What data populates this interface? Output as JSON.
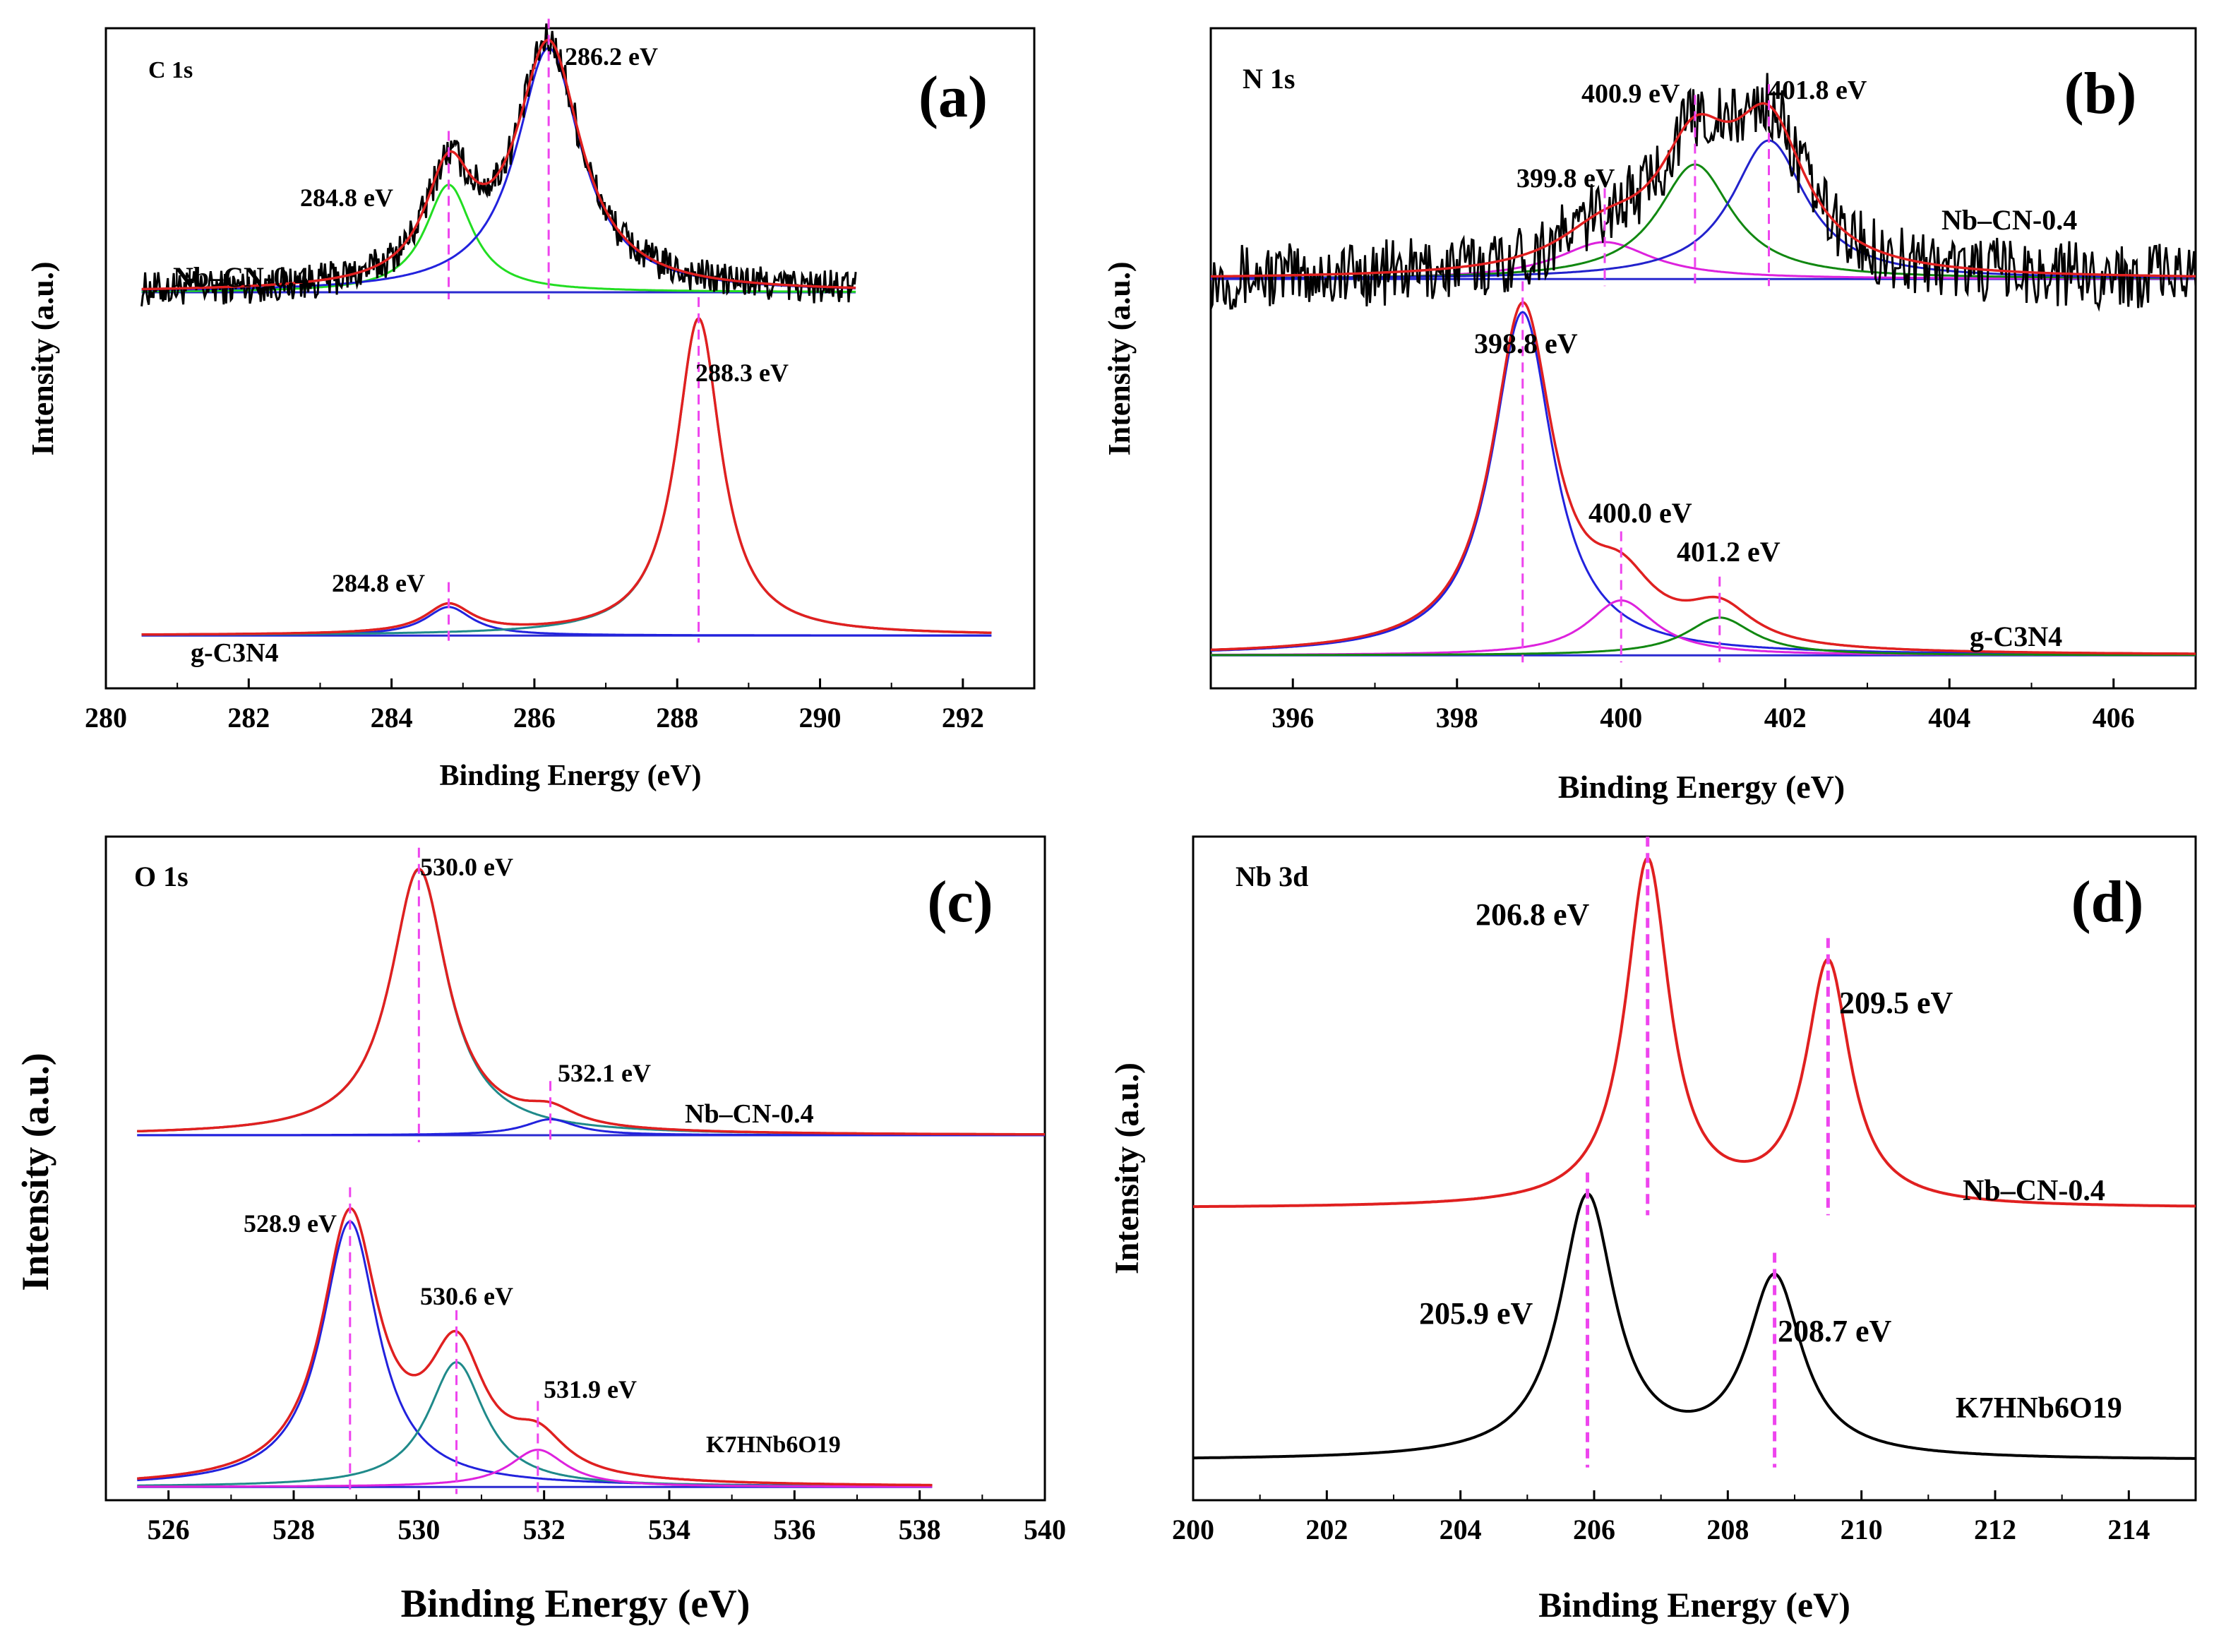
{
  "figure": {
    "xlabel": "Binding Energy (eV)",
    "ylabel": "Intensity (a.u.)"
  },
  "chart_data": [
    {
      "type": "line",
      "panel": "(a)",
      "element": "C 1s",
      "xlabel": "Binding Energy (eV)",
      "ylabel": "Intensity (a.u.)",
      "xlim": [
        280,
        293
      ],
      "xticks": [
        280,
        282,
        284,
        286,
        288,
        290,
        292
      ],
      "samples": [
        {
          "label": "Nb–CN-0.4",
          "xrange": [
            280.5,
            290.5
          ],
          "baseline": 0.6,
          "height": 0.37,
          "noise": 0.012,
          "peaks": [
            {
              "center": 284.8,
              "label": "284.8 eV",
              "amp": 0.44,
              "width": 0.4,
              "color": "#22dd22"
            },
            {
              "center": 286.2,
              "label": "286.2 eV",
              "amp": 1.0,
              "width": 0.55,
              "color": "#2222dd"
            }
          ]
        },
        {
          "label": "g-C3N4",
          "xrange": [
            280.5,
            292.4
          ],
          "baseline": 0.08,
          "height": 0.48,
          "noise": 0.0,
          "peaks": [
            {
              "center": 284.8,
              "label": "284.8 eV",
              "amp": 0.09,
              "width": 0.4,
              "color": "#2222dd"
            },
            {
              "center": 288.3,
              "label": "288.3 eV",
              "amp": 1.0,
              "width": 0.38,
              "color": "#1f8a8a"
            }
          ]
        }
      ]
    },
    {
      "type": "line",
      "panel": "(b)",
      "element": "N 1s",
      "xlabel": "Binding Energy (eV)",
      "ylabel": "Intensity (a.u.)",
      "xlim": [
        395,
        407
      ],
      "xticks": [
        396,
        398,
        400,
        402,
        404,
        406
      ],
      "samples": [
        {
          "label": "Nb–CN-0.4",
          "xrange": [
            395,
            407
          ],
          "baseline": 0.62,
          "height": 0.28,
          "noise": 0.03,
          "peaks": [
            {
              "center": 399.8,
              "label": "399.8 eV",
              "amp": 0.2,
              "width": 0.7,
              "color": "#dd22dd"
            },
            {
              "center": 400.9,
              "label": "400.9 eV",
              "amp": 0.62,
              "width": 0.55,
              "color": "#118811"
            },
            {
              "center": 401.8,
              "label": "401.8 eV",
              "amp": 0.75,
              "width": 0.55,
              "color": "#2222cc"
            }
          ]
        },
        {
          "label": "g-C3N4",
          "xrange": [
            395,
            407
          ],
          "baseline": 0.05,
          "height": 0.52,
          "noise": 0.0,
          "peaks": [
            {
              "center": 398.8,
              "label": "398.8 eV",
              "amp": 1.0,
              "width": 0.45,
              "color": "#2222dd"
            },
            {
              "center": 400.0,
              "label": "400.0 eV",
              "amp": 0.16,
              "width": 0.5,
              "color": "#dd22dd"
            },
            {
              "center": 401.2,
              "label": "401.2 eV",
              "amp": 0.11,
              "width": 0.5,
              "color": "#118811"
            }
          ]
        }
      ]
    },
    {
      "type": "line",
      "panel": "(c)",
      "element": "O 1s",
      "xlabel": "Binding Energy (eV)",
      "ylabel": "Intensity (a.u.)",
      "xlim": [
        525,
        540
      ],
      "xticks": [
        526,
        528,
        530,
        532,
        534,
        536,
        538,
        540
      ],
      "samples": [
        {
          "label": "Nb–CN-0.4",
          "xrange": [
            525.5,
            540
          ],
          "baseline": 0.55,
          "height": 0.4,
          "noise": 0.0,
          "peaks": [
            {
              "center": 530.0,
              "label": "530.0 eV",
              "amp": 1.0,
              "width": 0.55,
              "color": "#1f8a8a"
            },
            {
              "center": 532.1,
              "label": "532.1 eV",
              "amp": 0.06,
              "width": 0.5,
              "color": "#2222dd"
            }
          ]
        },
        {
          "label": "K7HNb6O19",
          "xrange": [
            525.5,
            538.2
          ],
          "baseline": 0.02,
          "height": 0.4,
          "noise": 0.0,
          "peaks": [
            {
              "center": 528.9,
              "label": "528.9 eV",
              "amp": 1.0,
              "width": 0.55,
              "color": "#2222dd"
            },
            {
              "center": 530.6,
              "label": "530.6 eV",
              "amp": 0.47,
              "width": 0.55,
              "color": "#1f8a8a"
            },
            {
              "center": 531.9,
              "label": "531.9 eV",
              "amp": 0.14,
              "width": 0.55,
              "color": "#dd22dd"
            }
          ]
        }
      ]
    },
    {
      "type": "line",
      "panel": "(d)",
      "element": "Nb 3d",
      "xlabel": "Binding Energy (eV)",
      "ylabel": "Intensity (a.u.)",
      "xlim": [
        200,
        215
      ],
      "xticks": [
        200,
        202,
        204,
        206,
        208,
        210,
        212,
        214
      ],
      "samples": [
        {
          "label": "Nb–CN-0.4",
          "xrange": [
            200,
            215
          ],
          "baseline": 0.44,
          "height": 0.52,
          "noise": 0.0,
          "line_color": "#e02020",
          "peaks": [
            {
              "center": 206.8,
              "label": "206.8 eV",
              "amp": 1.0,
              "width": 0.4,
              "color": "#e02020"
            },
            {
              "center": 209.5,
              "label": "209.5 eV",
              "amp": 0.7,
              "width": 0.4,
              "color": "#e02020"
            }
          ]
        },
        {
          "label": "K7HNb6O19",
          "xrange": [
            200,
            215
          ],
          "baseline": 0.06,
          "height": 0.48,
          "noise": 0.0,
          "line_color": "#000000",
          "peaks": [
            {
              "center": 205.9,
              "label": "205.9 eV",
              "amp": 0.82,
              "width": 0.5,
              "color": "#000000"
            },
            {
              "center": 208.7,
              "label": "208.7 eV",
              "amp": 0.56,
              "width": 0.5,
              "color": "#000000"
            }
          ]
        }
      ]
    }
  ],
  "colors": {
    "experimental": "#000000",
    "envelope": "#e02020",
    "peak_marker": "#ee44ee"
  }
}
